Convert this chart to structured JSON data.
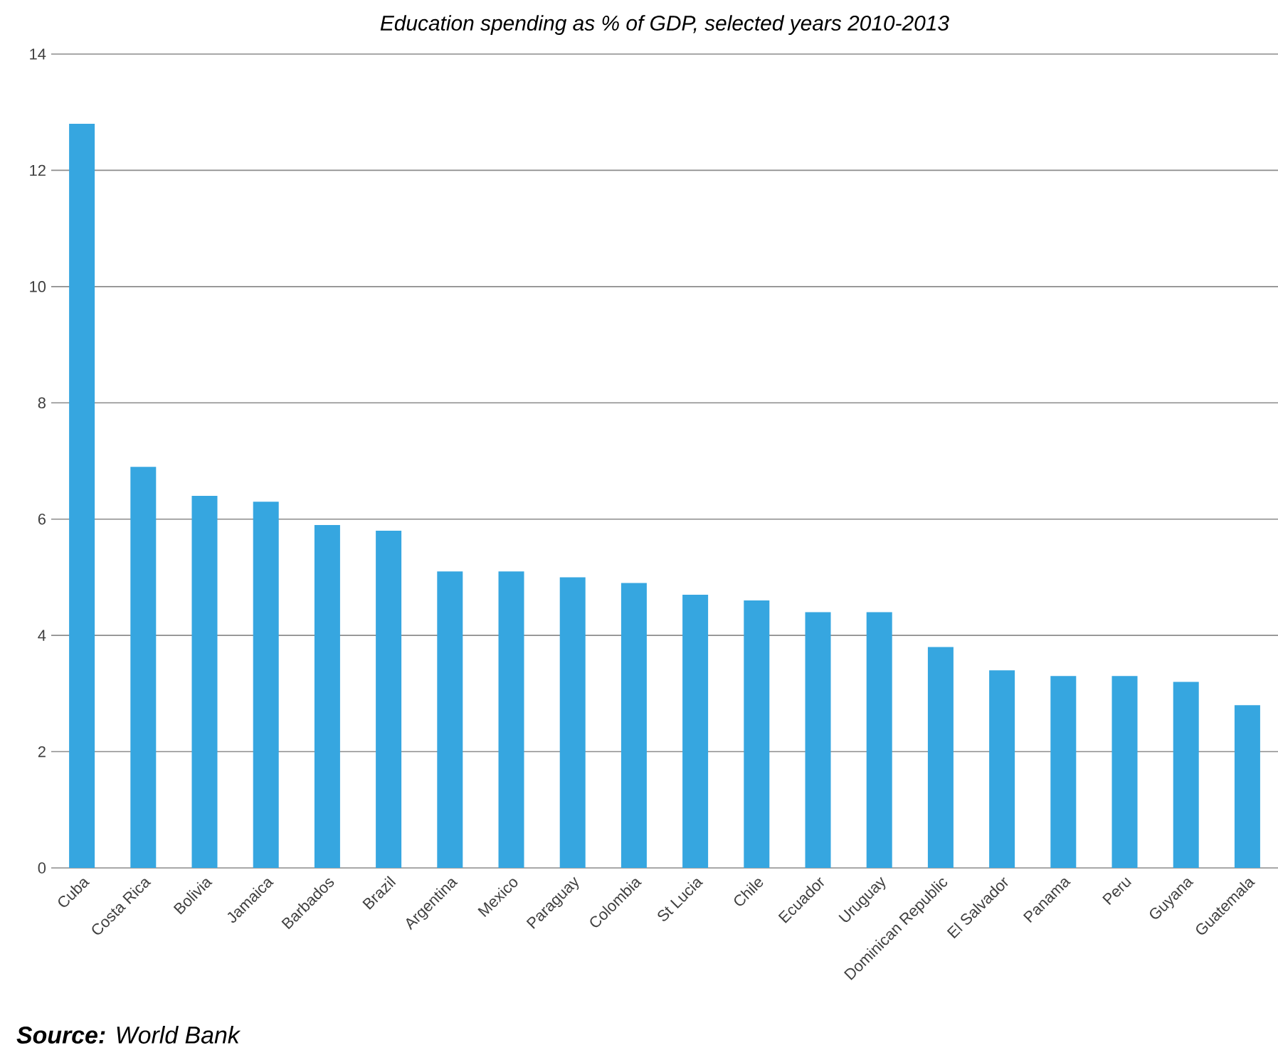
{
  "chart_data": {
    "type": "bar",
    "title": "Education spending as % of GDP, selected years 2010-2013",
    "categories": [
      "Cuba",
      "Costa Rica",
      "Bolivia",
      "Jamaica",
      "Barbados",
      "Brazil",
      "Argentina",
      "Mexico",
      "Paraguay",
      "Colombia",
      "St Lucia",
      "Chile",
      "Ecuador",
      "Uruguay",
      "Dominican Republic",
      "El Salvador",
      "Panama",
      "Peru",
      "Guyana",
      "Guatemala"
    ],
    "values": [
      12.8,
      6.9,
      6.4,
      6.3,
      5.9,
      5.8,
      5.1,
      5.1,
      5.0,
      4.9,
      4.7,
      4.6,
      4.4,
      4.4,
      3.8,
      3.4,
      3.3,
      3.3,
      3.2,
      2.8
    ],
    "color": "#36a6e0",
    "ylim": [
      0,
      14
    ],
    "yticks": [
      0,
      2,
      4,
      6,
      8,
      10,
      12,
      14
    ],
    "grid": "y",
    "annotations": [
      "**Source:** World Bank"
    ]
  }
}
